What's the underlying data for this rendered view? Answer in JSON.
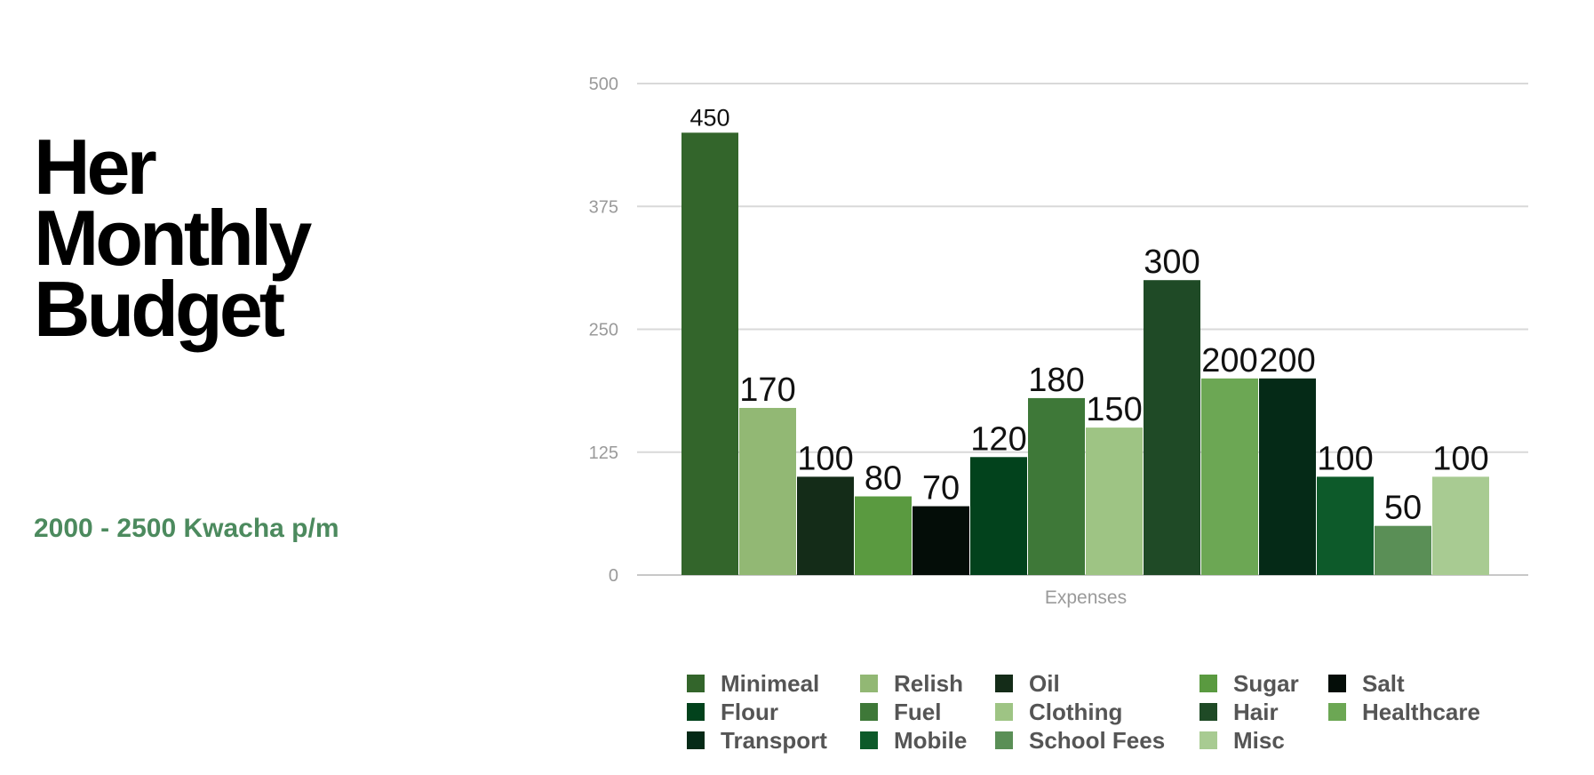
{
  "title_lines": [
    "Her",
    "Monthly",
    "Budget"
  ],
  "subtitle": "2000 - 2500 Kwacha p/m",
  "chart_data": {
    "type": "bar",
    "xlabel": "Expenses",
    "ylabel": "",
    "ylim": [
      0,
      500
    ],
    "yticks": [
      0,
      125,
      250,
      375,
      500
    ],
    "grid": true,
    "legend_position": "bottom",
    "categories": [
      "Expenses"
    ],
    "series": [
      {
        "name": "Minimeal",
        "values": [
          450
        ],
        "color": "#33652b"
      },
      {
        "name": "Relish",
        "values": [
          170
        ],
        "color": "#92b874"
      },
      {
        "name": "Oil",
        "values": [
          100
        ],
        "color": "#142c18"
      },
      {
        "name": "Sugar",
        "values": [
          80
        ],
        "color": "#5a9a40"
      },
      {
        "name": "Salt",
        "values": [
          70
        ],
        "color": "#040d08"
      },
      {
        "name": "Flour",
        "values": [
          120
        ],
        "color": "#02421c"
      },
      {
        "name": "Fuel",
        "values": [
          180
        ],
        "color": "#3e7838"
      },
      {
        "name": "Clothing",
        "values": [
          150
        ],
        "color": "#9ec484"
      },
      {
        "name": "Hair",
        "values": [
          300
        ],
        "color": "#1f4a26"
      },
      {
        "name": "Healthcare",
        "values": [
          200
        ],
        "color": "#6ca754"
      },
      {
        "name": "Transport",
        "values": [
          200
        ],
        "color": "#052a17"
      },
      {
        "name": "Mobile",
        "values": [
          100
        ],
        "color": "#0d5a2a"
      },
      {
        "name": "School Fees",
        "values": [
          50
        ],
        "color": "#5a8f56"
      },
      {
        "name": "Misc",
        "values": [
          100
        ],
        "color": "#a8cb92"
      }
    ]
  }
}
